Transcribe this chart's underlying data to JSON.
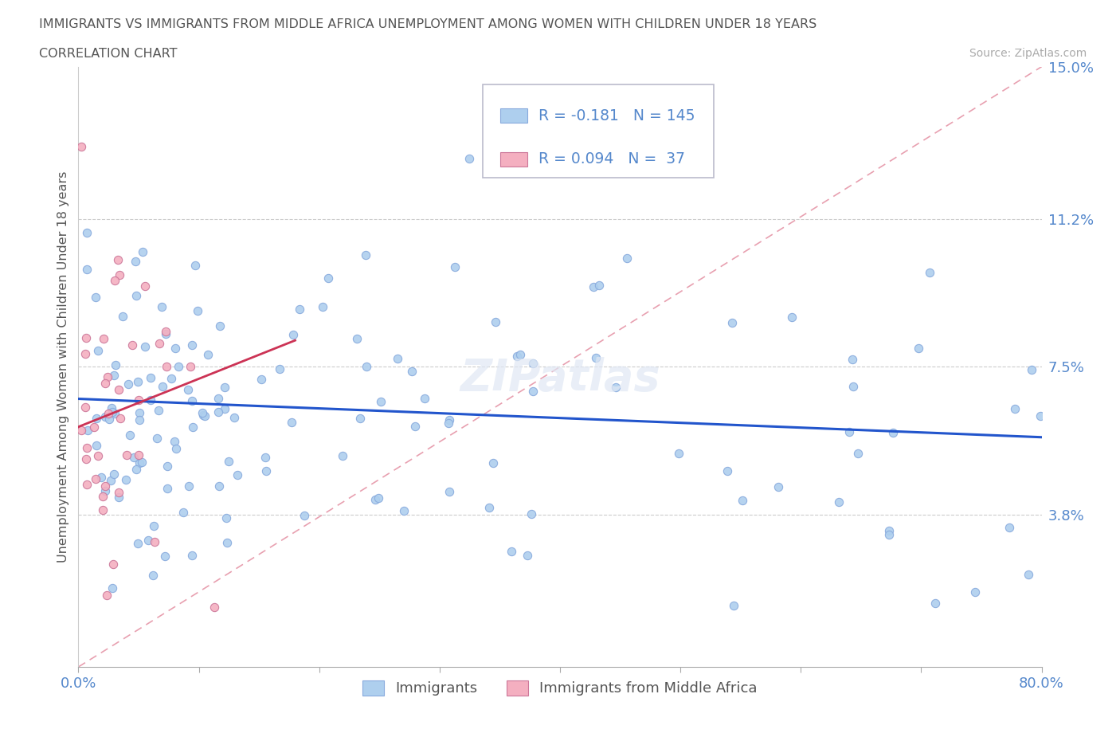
{
  "title_line1": "IMMIGRANTS VS IMMIGRANTS FROM MIDDLE AFRICA UNEMPLOYMENT AMONG WOMEN WITH CHILDREN UNDER 18 YEARS",
  "title_line2": "CORRELATION CHART",
  "source_text": "Source: ZipAtlas.com",
  "ylabel": "Unemployment Among Women with Children Under 18 years",
  "xmin": 0.0,
  "xmax": 0.8,
  "ymin": 0.0,
  "ymax": 0.15,
  "legend_label1": "Immigrants",
  "legend_label2": "Immigrants from Middle Africa",
  "R1": -0.181,
  "N1": 145,
  "R2": 0.094,
  "N2": 37,
  "color1": "#aecfee",
  "color2": "#f4afc0",
  "line1_color": "#2255cc",
  "line2_color": "#cc3355",
  "diag_line_color": "#e8a0b0",
  "grid_color": "#cccccc",
  "tick_label_color": "#5588cc",
  "title_color": "#555555",
  "background_color": "#ffffff",
  "watermark_text": "ZIPatlas",
  "watermark_color": "#dddddd",
  "grid_yticks": [
    0.038,
    0.075,
    0.112
  ],
  "right_ytick_labels": [
    "3.8%",
    "7.5%",
    "11.2%",
    "15.0%"
  ],
  "right_ytick_vals": [
    0.038,
    0.075,
    0.112,
    0.15
  ]
}
